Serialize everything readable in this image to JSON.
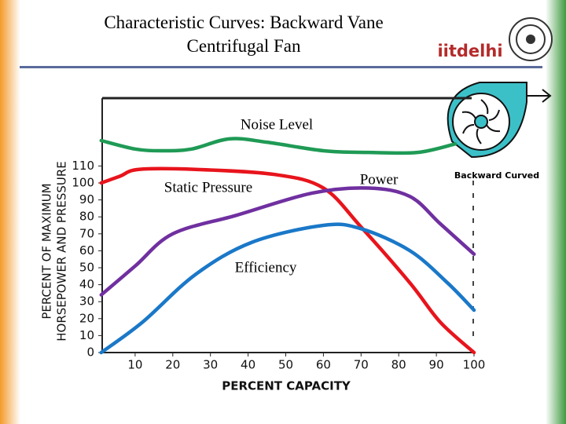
{
  "header": {
    "title": "Characteristic Curves: Backward Vane Centrifugal Fan",
    "logo": "iitdelhi"
  },
  "chart_data": {
    "type": "line",
    "xlabel": "PERCENT CAPACITY",
    "ylabel": [
      "PERCENT OF MAXIMUM",
      "HORSEPOWER AND PRESSURE"
    ],
    "fan_label": "Backward Curved",
    "xlim": [
      0,
      100
    ],
    "ylim": [
      0,
      150
    ],
    "xticks": [
      10,
      20,
      30,
      40,
      50,
      60,
      70,
      80,
      90,
      100
    ],
    "yticks": [
      0,
      10,
      20,
      30,
      40,
      50,
      60,
      70,
      80,
      90,
      100,
      110
    ],
    "series": [
      {
        "name": "Noise Level",
        "color": "#1f9a55",
        "x": [
          1,
          10,
          17,
          25,
          35,
          45,
          60,
          72,
          85,
          95
        ],
        "values": [
          125,
          120,
          119,
          120,
          126,
          124,
          119,
          118,
          118,
          123
        ]
      },
      {
        "name": "Static Pressure",
        "color": "#e8141c",
        "x": [
          1,
          6,
          11,
          26,
          47,
          60,
          70,
          83,
          91,
          100
        ],
        "values": [
          100,
          104,
          108,
          108,
          105,
          97,
          74,
          41,
          18,
          0
        ]
      },
      {
        "name": "Power",
        "color": "#7030a0",
        "x": [
          1,
          10,
          20,
          37,
          57,
          72,
          83,
          91,
          100
        ],
        "values": [
          34,
          51,
          70,
          81,
          94,
          97,
          92,
          76,
          58
        ]
      },
      {
        "name": "Efficiency",
        "color": "#1a78c8",
        "x": [
          1,
          12,
          26,
          41,
          60,
          70,
          83,
          93,
          100
        ],
        "values": [
          0,
          18,
          46,
          65,
          75,
          73,
          60,
          41,
          25
        ]
      }
    ]
  }
}
